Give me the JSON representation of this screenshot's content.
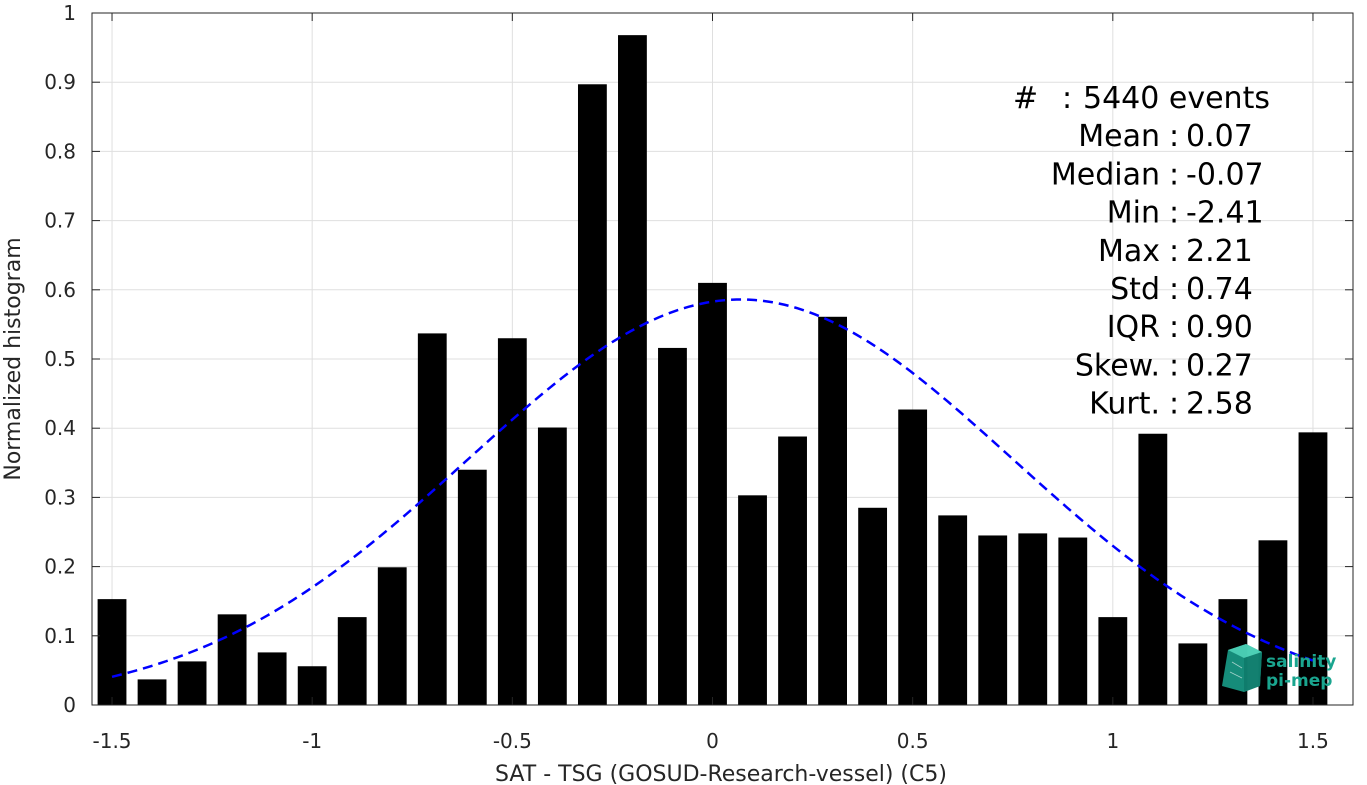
{
  "chart_data": {
    "type": "bar",
    "xlabel": "SAT - TSG (GOSUD-Research-vessel) (C5)",
    "ylabel": "Normalized histogram",
    "xlim": [
      -1.55,
      1.6
    ],
    "ylim": [
      0,
      1
    ],
    "grid": true,
    "x_ticks": [
      "-1.5",
      "-1",
      "-0.5",
      "0",
      "0.5",
      "1",
      "1.5"
    ],
    "y_ticks": [
      "0",
      "0.1",
      "0.2",
      "0.3",
      "0.4",
      "0.5",
      "0.6",
      "0.7",
      "0.8",
      "0.9",
      "1"
    ],
    "x": [
      -1.5,
      -1.4,
      -1.3,
      -1.2,
      -1.1,
      -1.0,
      -0.9,
      -0.8,
      -0.7,
      -0.6,
      -0.5,
      -0.4,
      -0.3,
      -0.2,
      -0.1,
      0.0,
      0.1,
      0.2,
      0.3,
      0.4,
      0.5,
      0.6,
      0.7,
      0.8,
      0.9,
      1.0,
      1.1,
      1.2,
      1.3,
      1.4,
      1.5
    ],
    "values": [
      0.153,
      0.037,
      0.063,
      0.131,
      0.076,
      0.056,
      0.127,
      0.199,
      0.537,
      0.34,
      0.53,
      0.401,
      0.897,
      0.968,
      0.516,
      0.61,
      0.303,
      0.388,
      0.561,
      0.285,
      0.427,
      0.274,
      0.245,
      0.248,
      0.242,
      0.127,
      0.392,
      0.089,
      0.153,
      0.238,
      0.394
    ],
    "bar_color": "#000000",
    "fit_curve": {
      "style": "dashed",
      "color": "#0000ff",
      "mean": 0.07,
      "std": 0.68,
      "peak": 0.586,
      "x_range": [
        -1.5,
        1.5
      ]
    },
    "stats": [
      {
        "label": "#",
        "sep": ":",
        "value": "5440 events"
      },
      {
        "label": "Mean",
        "sep": ":",
        "value": "0.07"
      },
      {
        "label": "Median",
        "sep": ":",
        "value": "-0.07"
      },
      {
        "label": "Min",
        "sep": ":",
        "value": "-2.41"
      },
      {
        "label": "Max",
        "sep": ":",
        "value": "2.21"
      },
      {
        "label": "Std",
        "sep": ":",
        "value": "0.74"
      },
      {
        "label": "IQR",
        "sep": ":",
        "value": "0.90"
      },
      {
        "label": "Skew.",
        "sep": ":",
        "value": "0.27"
      },
      {
        "label": "Kurt.",
        "sep": ":",
        "value": "2.58"
      }
    ]
  },
  "logo": {
    "line1": "salinity",
    "line2": "pi-mep",
    "color": "#1aa58f"
  }
}
